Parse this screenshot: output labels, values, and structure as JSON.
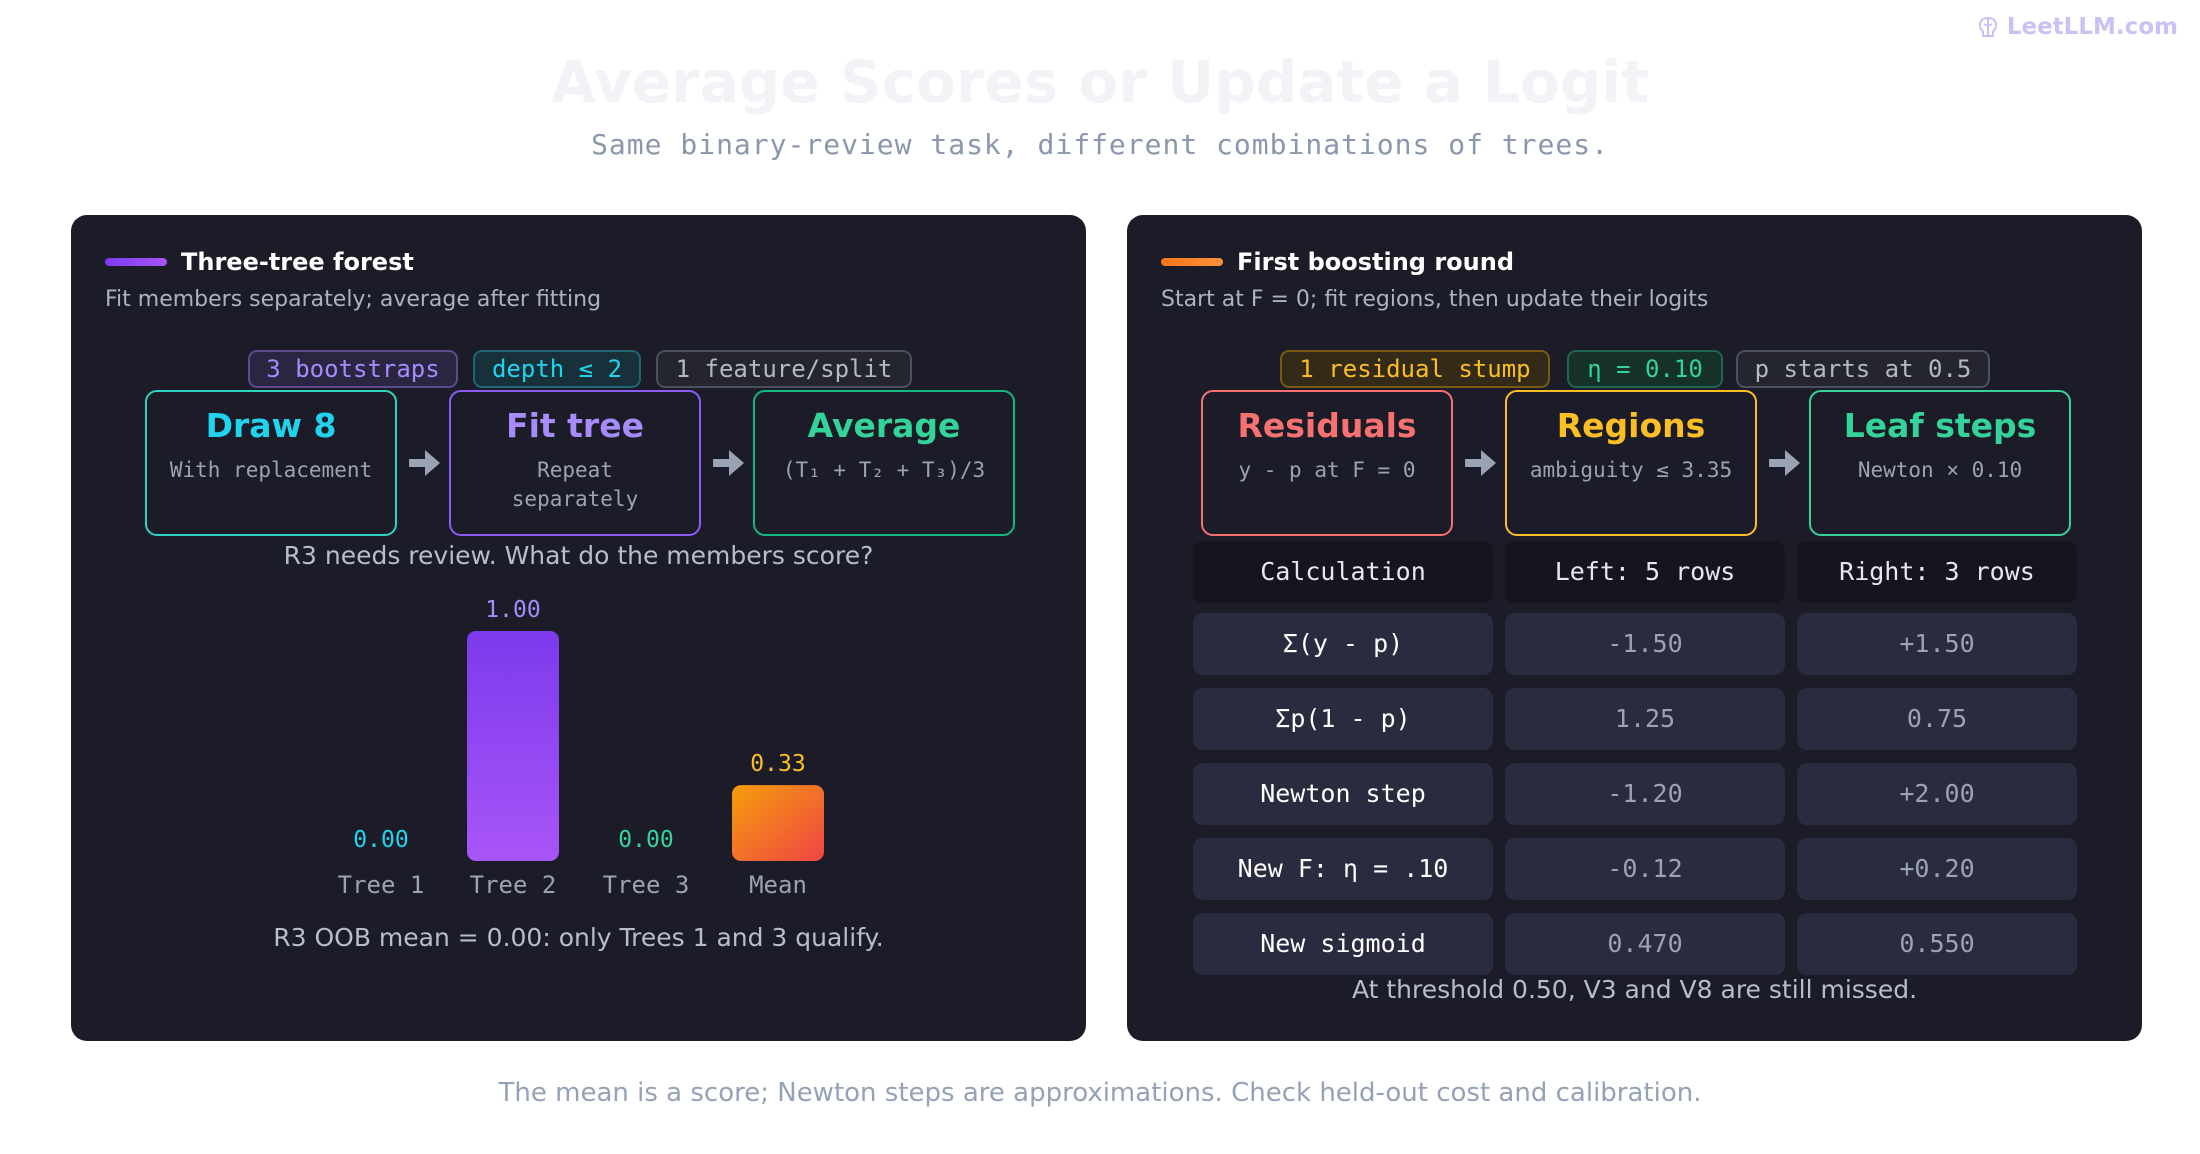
{
  "brand": {
    "name": "LeetLLM.com",
    "icon": "brain-icon"
  },
  "title": "Average Scores or Update a Logit",
  "subtitle": "Same binary-review task, different combinations of trees.",
  "footer": "The mean is a score; Newton steps are approximations. Check held-out cost and calibration.",
  "left": {
    "title": "Three-tree forest",
    "subtitle": "Fit members separately; average after fitting",
    "accent": "#8b5cf6",
    "chips": [
      {
        "label": "3 bootstraps",
        "color": "#a78bfa"
      },
      {
        "label": "depth ≤ 2",
        "color": "#22d3ee"
      },
      {
        "label": "1 feature/split",
        "color": "#b3b8c4"
      }
    ],
    "stages": [
      {
        "name": "Draw 8",
        "desc": "With replacement",
        "color": "#22d3ee",
        "border": "#2dd4bf"
      },
      {
        "name": "Fit tree",
        "desc": "Repeat separately",
        "color": "#a78bfa",
        "border": "#8b5cf6"
      },
      {
        "name": "Average",
        "desc": "(T₁ + T₂ + T₃)/3",
        "color": "#34d399",
        "border": "#10b981"
      }
    ],
    "question": "R3 needs review. What do the members score?",
    "note": "R3 OOB mean = 0.00: only Trees 1 and 3 qualify."
  },
  "chart_data": {
    "type": "bar",
    "categories": [
      "Tree 1",
      "Tree 2",
      "Tree 3",
      "Mean"
    ],
    "values": [
      0.0,
      1.0,
      0.0,
      0.33
    ],
    "value_labels": [
      "0.00",
      "1.00",
      "0.00",
      "0.33"
    ],
    "label_colors": [
      "#22d3ee",
      "#a78bfa",
      "#34d399",
      "#fbbf24"
    ],
    "ylim": [
      0,
      1
    ]
  },
  "right": {
    "title": "First boosting round",
    "subtitle": "Start at F = 0; fit regions, then update their logits",
    "accent": "#f97316",
    "chips": [
      {
        "label": "1 residual stump",
        "color": "#fbbf24"
      },
      {
        "label": "η = 0.10",
        "color": "#34d399"
      },
      {
        "label": "p starts at 0.5",
        "color": "#b3b8c4"
      }
    ],
    "stages": [
      {
        "name": "Residuals",
        "desc": "y - p at F = 0",
        "color": "#f87171",
        "border": "#f87171"
      },
      {
        "name": "Regions",
        "desc": "ambiguity ≤ 3.35",
        "color": "#fbbf24",
        "border": "#fbbf24"
      },
      {
        "name": "Leaf steps",
        "desc": "Newton × 0.10",
        "color": "#34d399",
        "border": "#34d399"
      }
    ],
    "table": {
      "headers": [
        "Calculation",
        "Left: 5 rows",
        "Right: 3 rows"
      ],
      "rows": [
        [
          "Σ(y - p)",
          "-1.50",
          "+1.50"
        ],
        [
          "Σp(1 - p)",
          "1.25",
          "0.75"
        ],
        [
          "Newton step",
          "-1.20",
          "+2.00"
        ],
        [
          "New F: η = .10",
          "-0.12",
          "+0.20"
        ],
        [
          "New sigmoid",
          "0.470",
          "0.550"
        ]
      ]
    },
    "note": "At threshold 0.50, V3 and V8 are still missed."
  }
}
